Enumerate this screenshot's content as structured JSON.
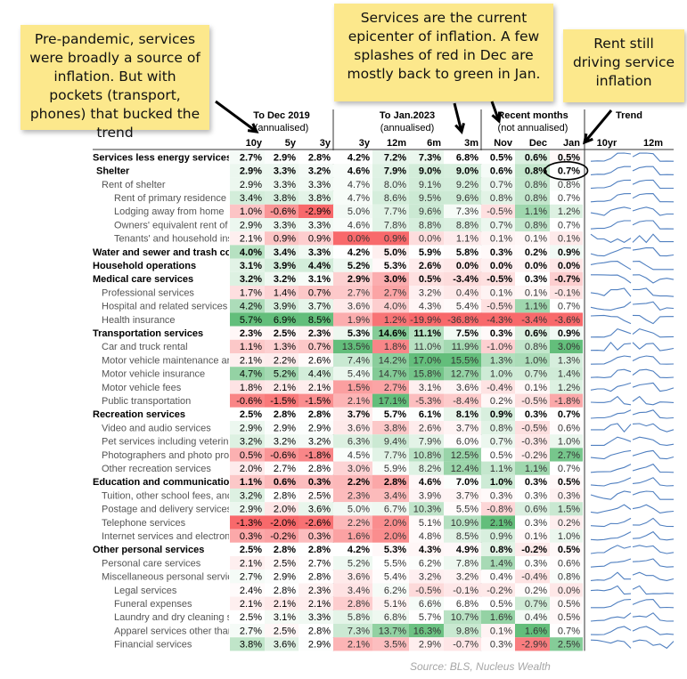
{
  "notes": {
    "left": "Pre-pandemic, services were broadly a source of inflation. But with pockets (transport, phones) that bucked the trend",
    "middle": "Services are the current epicenter of inflation. A few splashes of red in Dec are mostly back to green in Jan.",
    "right": "Rent still driving service inflation"
  },
  "source": "Source: BLS, Nucleus Wealth",
  "chart_data": {
    "type": "table",
    "groups": [
      {
        "label": "To Dec 2019",
        "sublabel": "(annualised)",
        "columns": [
          "10y",
          "5y",
          "3y"
        ]
      },
      {
        "label": "To Jan.2023",
        "sublabel": "(annualised)",
        "columns": [
          "3y",
          "12m",
          "6m",
          "3m"
        ]
      },
      {
        "label": "Recent months",
        "sublabel": "(not annualised)",
        "columns": [
          "Nov",
          "Dec",
          "Jan"
        ]
      },
      {
        "label": "Trend",
        "sublabel": "",
        "columns": [
          "10yr",
          "12m"
        ]
      }
    ],
    "rows": [
      {
        "name": "Services less energy services",
        "level": 0,
        "bold": true,
        "values": [
          2.7,
          2.9,
          2.8,
          4.2,
          7.2,
          7.3,
          6.8,
          0.5,
          0.6,
          0.5
        ]
      },
      {
        "name": "Shelter",
        "level": 1,
        "bold": true,
        "values": [
          2.9,
          3.3,
          3.2,
          4.6,
          7.9,
          9.0,
          9.0,
          0.6,
          0.8,
          0.7
        ]
      },
      {
        "name": "Rent of shelter",
        "level": 2,
        "bold": false,
        "values": [
          2.9,
          3.3,
          3.3,
          4.7,
          8.0,
          9.1,
          9.2,
          0.7,
          0.8,
          0.8
        ]
      },
      {
        "name": "Rent of primary residence",
        "level": 3,
        "bold": false,
        "values": [
          3.4,
          3.8,
          3.8,
          4.7,
          8.6,
          9.5,
          9.6,
          0.8,
          0.8,
          0.7
        ]
      },
      {
        "name": "Lodging away from home",
        "level": 3,
        "bold": false,
        "values": [
          1.0,
          -0.6,
          -2.9,
          5.0,
          7.7,
          9.6,
          7.3,
          -0.5,
          1.1,
          1.2
        ]
      },
      {
        "name": "Owners' equivalent rent of residences",
        "level": 3,
        "bold": false,
        "values": [
          2.9,
          3.3,
          3.3,
          4.6,
          7.8,
          8.8,
          8.8,
          0.7,
          0.8,
          0.7
        ]
      },
      {
        "name": "Tenants' and household insurance",
        "level": 3,
        "bold": false,
        "values": [
          2.1,
          0.9,
          0.9,
          0.0,
          0.9,
          0.0,
          1.1,
          0.1,
          0.1,
          0.1
        ]
      },
      {
        "name": "Water and sewer and trash collection",
        "level": 0,
        "bold": true,
        "values": [
          4.0,
          3.4,
          3.3,
          4.2,
          5.0,
          5.9,
          5.8,
          0.3,
          0.2,
          0.9
        ]
      },
      {
        "name": "Household operations",
        "level": 0,
        "bold": true,
        "values": [
          3.1,
          3.9,
          4.4,
          5.2,
          5.3,
          2.6,
          0.0,
          0.0,
          0.0,
          0.0
        ]
      },
      {
        "name": "Medical care services",
        "level": 0,
        "bold": true,
        "values": [
          3.2,
          3.2,
          3.1,
          2.9,
          3.0,
          0.5,
          -3.4,
          -0.5,
          0.3,
          -0.7
        ]
      },
      {
        "name": "Professional services",
        "level": 2,
        "bold": false,
        "values": [
          1.7,
          1.4,
          0.7,
          2.7,
          2.7,
          3.2,
          0.4,
          0.1,
          0.1,
          -0.1
        ]
      },
      {
        "name": "Hospital and related services",
        "level": 2,
        "bold": false,
        "values": [
          4.2,
          3.9,
          3.7,
          3.6,
          4.0,
          4.3,
          5.4,
          -0.5,
          1.1,
          0.7
        ]
      },
      {
        "name": "Health insurance",
        "level": 2,
        "bold": false,
        "values": [
          5.7,
          6.9,
          8.5,
          1.9,
          1.2,
          -19.9,
          -36.8,
          -4.3,
          -3.4,
          -3.6
        ]
      },
      {
        "name": "Transportation services",
        "level": 0,
        "bold": true,
        "values": [
          2.3,
          2.5,
          2.3,
          5.3,
          14.6,
          11.1,
          7.5,
          0.3,
          0.6,
          0.9
        ]
      },
      {
        "name": "Car and truck rental",
        "level": 2,
        "bold": false,
        "values": [
          1.1,
          1.3,
          0.7,
          13.5,
          1.8,
          11.0,
          11.9,
          -1.0,
          0.8,
          3.0
        ]
      },
      {
        "name": "Motor vehicle maintenance and repair",
        "level": 2,
        "bold": false,
        "values": [
          2.1,
          2.2,
          2.6,
          7.4,
          14.2,
          17.0,
          15.5,
          1.3,
          1.0,
          1.3
        ]
      },
      {
        "name": "Motor vehicle insurance",
        "level": 2,
        "bold": false,
        "values": [
          4.7,
          5.2,
          4.4,
          5.4,
          14.7,
          15.8,
          12.7,
          1.0,
          0.7,
          1.4
        ]
      },
      {
        "name": "Motor vehicle fees",
        "level": 2,
        "bold": false,
        "values": [
          1.8,
          2.1,
          2.1,
          1.5,
          2.7,
          3.1,
          3.6,
          -0.4,
          0.1,
          1.2
        ]
      },
      {
        "name": "Public transportation",
        "level": 2,
        "bold": false,
        "values": [
          -0.6,
          -1.5,
          -1.5,
          2.1,
          17.1,
          -5.3,
          -8.4,
          0.2,
          -0.5,
          -1.8
        ]
      },
      {
        "name": "Recreation services",
        "level": 0,
        "bold": true,
        "values": [
          2.5,
          2.8,
          2.8,
          3.7,
          5.7,
          6.1,
          8.1,
          0.9,
          0.3,
          0.7
        ]
      },
      {
        "name": "Video and audio services",
        "level": 2,
        "bold": false,
        "values": [
          2.9,
          2.9,
          2.9,
          3.6,
          3.8,
          2.6,
          3.7,
          0.8,
          -0.5,
          0.6
        ]
      },
      {
        "name": "Pet services including veterinary",
        "level": 2,
        "bold": false,
        "values": [
          3.2,
          3.2,
          3.2,
          6.3,
          9.4,
          7.9,
          6.0,
          0.7,
          -0.3,
          1.0
        ]
      },
      {
        "name": "Photographers and photo processing",
        "level": 2,
        "bold": false,
        "values": [
          0.5,
          -0.6,
          -1.8,
          4.5,
          7.7,
          10.8,
          12.5,
          0.5,
          -0.2,
          2.7
        ]
      },
      {
        "name": "Other recreation services",
        "level": 2,
        "bold": false,
        "values": [
          2.0,
          2.7,
          2.8,
          3.0,
          5.9,
          8.2,
          12.4,
          1.1,
          1.1,
          0.7
        ]
      },
      {
        "name": "Education and communication services",
        "level": 0,
        "bold": true,
        "values": [
          1.1,
          0.6,
          0.3,
          2.2,
          2.8,
          4.6,
          7.0,
          1.0,
          0.3,
          0.5
        ]
      },
      {
        "name": "Tuition, other school fees, and childcare",
        "level": 2,
        "bold": false,
        "values": [
          3.2,
          2.8,
          2.5,
          2.3,
          3.4,
          3.9,
          3.7,
          0.3,
          0.3,
          0.3
        ]
      },
      {
        "name": "Postage and delivery services",
        "level": 2,
        "bold": false,
        "values": [
          2.9,
          2.0,
          3.6,
          5.0,
          6.7,
          10.3,
          5.5,
          -0.8,
          0.6,
          1.5
        ]
      },
      {
        "name": "Telephone services",
        "level": 2,
        "bold": false,
        "values": [
          -1.3,
          -2.0,
          -2.6,
          2.2,
          2.0,
          5.1,
          10.9,
          2.1,
          0.3,
          0.2
        ]
      },
      {
        "name": "Internet services and electronic information providers",
        "level": 2,
        "bold": false,
        "values": [
          0.3,
          -0.2,
          0.3,
          1.6,
          2.0,
          4.8,
          8.5,
          0.9,
          0.1,
          1.0
        ]
      },
      {
        "name": "Other personal services",
        "level": 0,
        "bold": true,
        "values": [
          2.5,
          2.8,
          2.8,
          4.2,
          5.3,
          4.3,
          4.9,
          0.8,
          -0.2,
          0.5
        ]
      },
      {
        "name": "Personal care services",
        "level": 2,
        "bold": false,
        "values": [
          2.1,
          2.5,
          2.7,
          5.2,
          5.5,
          6.2,
          7.8,
          1.4,
          0.3,
          0.6
        ]
      },
      {
        "name": "Miscellaneous personal services",
        "level": 2,
        "bold": false,
        "values": [
          2.7,
          2.9,
          2.8,
          3.6,
          5.4,
          3.2,
          3.2,
          0.4,
          -0.4,
          0.8
        ]
      },
      {
        "name": "Legal services",
        "level": 3,
        "bold": false,
        "values": [
          2.4,
          2.8,
          2.3,
          3.4,
          6.2,
          -0.5,
          -0.1,
          -0.2,
          0.2,
          0.0
        ]
      },
      {
        "name": "Funeral expenses",
        "level": 3,
        "bold": false,
        "values": [
          2.1,
          2.1,
          2.1,
          2.8,
          5.1,
          6.6,
          6.8,
          0.5,
          0.7,
          0.5
        ]
      },
      {
        "name": "Laundry and dry cleaning services",
        "level": 3,
        "bold": false,
        "values": [
          2.5,
          3.1,
          3.3,
          5.8,
          6.8,
          5.7,
          10.7,
          1.6,
          0.4,
          0.5
        ]
      },
      {
        "name": "Apparel services other than laundry and dry cleaning",
        "level": 3,
        "bold": false,
        "values": [
          2.7,
          2.5,
          2.8,
          7.3,
          13.7,
          16.3,
          9.8,
          0.1,
          1.6,
          0.7
        ]
      },
      {
        "name": "Financial services",
        "level": 3,
        "bold": false,
        "values": [
          3.8,
          3.6,
          2.9,
          2.1,
          3.5,
          2.9,
          -0.7,
          0.3,
          -2.9,
          2.5
        ]
      }
    ],
    "trend_color": "#4f7fc0",
    "positive_color": "#63be7b",
    "negative_color": "#f8696b"
  }
}
